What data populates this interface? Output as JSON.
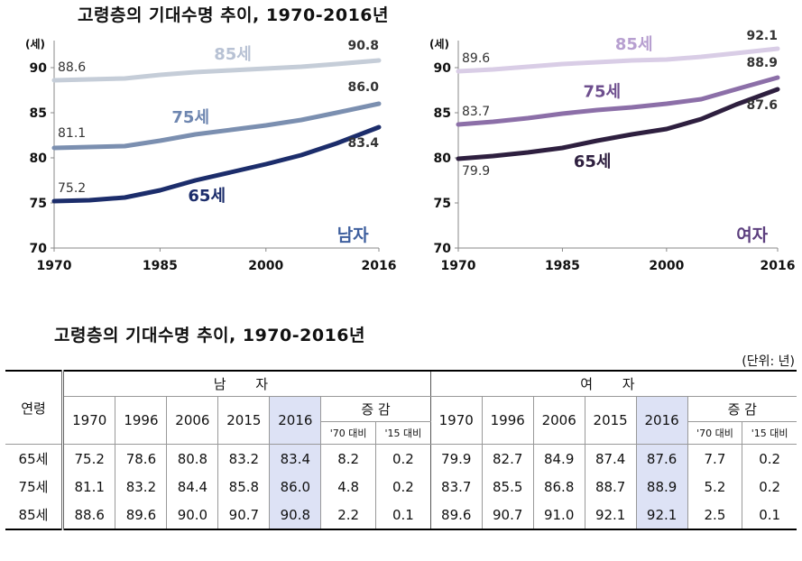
{
  "top_title": "고령층의 기대수명 추이, 1970-2016년",
  "chart_data": [
    {
      "type": "line",
      "panel_label": "남자",
      "yunit": "(세)",
      "ylim": [
        70,
        92
      ],
      "yticks": [
        70,
        75,
        80,
        85,
        90
      ],
      "xlim": [
        1970,
        2016
      ],
      "xticks": [
        1970,
        1985,
        2000,
        2016
      ],
      "series": [
        {
          "name": "85세",
          "color": "#c5cdd8",
          "x": [
            1970,
            1975,
            1980,
            1985,
            1990,
            1995,
            2000,
            2005,
            2010,
            2016
          ],
          "y": [
            88.6,
            88.7,
            88.8,
            89.2,
            89.5,
            89.7,
            89.9,
            90.1,
            90.4,
            90.8
          ],
          "start_label": "88.6",
          "end_label": "90.8"
        },
        {
          "name": "75세",
          "color": "#7b8fb0",
          "x": [
            1970,
            1975,
            1980,
            1985,
            1990,
            1995,
            2000,
            2005,
            2010,
            2016
          ],
          "y": [
            81.1,
            81.2,
            81.3,
            81.9,
            82.6,
            83.1,
            83.6,
            84.2,
            85.0,
            86.0
          ],
          "start_label": "81.1",
          "end_label": "86.0"
        },
        {
          "name": "65세",
          "color": "#1c2d6b",
          "x": [
            1970,
            1975,
            1980,
            1985,
            1990,
            1995,
            2000,
            2005,
            2010,
            2016
          ],
          "y": [
            75.2,
            75.3,
            75.6,
            76.4,
            77.5,
            78.4,
            79.3,
            80.3,
            81.6,
            83.4
          ],
          "start_label": "75.2",
          "end_label": "83.4"
        }
      ]
    },
    {
      "type": "line",
      "panel_label": "여자",
      "yunit": "(세)",
      "ylim": [
        70,
        92
      ],
      "yticks": [
        70,
        75,
        80,
        85,
        90
      ],
      "xlim": [
        1970,
        2016
      ],
      "xticks": [
        1970,
        1985,
        2000,
        2016
      ],
      "series": [
        {
          "name": "85세",
          "color": "#d9cde6",
          "x": [
            1970,
            1975,
            1980,
            1985,
            1990,
            1995,
            2000,
            2005,
            2010,
            2016
          ],
          "y": [
            89.6,
            89.8,
            90.1,
            90.4,
            90.6,
            90.8,
            90.9,
            91.2,
            91.6,
            92.1
          ],
          "start_label": "89.6",
          "end_label": "92.1"
        },
        {
          "name": "75세",
          "color": "#8c6fa8",
          "x": [
            1970,
            1975,
            1980,
            1985,
            1990,
            1995,
            2000,
            2005,
            2010,
            2016
          ],
          "y": [
            83.7,
            84.0,
            84.4,
            84.9,
            85.3,
            85.6,
            86.0,
            86.5,
            87.6,
            88.9
          ],
          "start_label": "83.7",
          "end_label": "88.9"
        },
        {
          "name": "65세",
          "color": "#2e1f3f",
          "x": [
            1970,
            1975,
            1980,
            1985,
            1990,
            1995,
            2000,
            2005,
            2010,
            2016
          ],
          "y": [
            79.9,
            80.2,
            80.6,
            81.1,
            81.9,
            82.6,
            83.2,
            84.3,
            85.9,
            87.6
          ],
          "start_label": "79.9",
          "end_label": "87.6"
        }
      ]
    }
  ],
  "table": {
    "title": "고령층의 기대수명 추이, 1970-2016년",
    "unit": "(단위: 년)",
    "row_header": "연령",
    "group_male": "남 자",
    "group_female": "여 자",
    "years": [
      "1970",
      "1996",
      "2006",
      "2015",
      "2016"
    ],
    "change_label": "증 감",
    "change_cols": [
      "'70 대비",
      "'15 대비"
    ],
    "rows": [
      {
        "age": "65세",
        "male": [
          "75.2",
          "78.6",
          "80.8",
          "83.2",
          "83.4"
        ],
        "male_change": [
          "8.2",
          "0.2"
        ],
        "female": [
          "79.9",
          "82.7",
          "84.9",
          "87.4",
          "87.6"
        ],
        "female_change": [
          "7.7",
          "0.2"
        ]
      },
      {
        "age": "75세",
        "male": [
          "81.1",
          "83.2",
          "84.4",
          "85.8",
          "86.0"
        ],
        "male_change": [
          "4.8",
          "0.2"
        ],
        "female": [
          "83.7",
          "85.5",
          "86.8",
          "88.7",
          "88.9"
        ],
        "female_change": [
          "5.2",
          "0.2"
        ]
      },
      {
        "age": "85세",
        "male": [
          "88.6",
          "89.6",
          "90.0",
          "90.7",
          "90.8"
        ],
        "male_change": [
          "2.2",
          "0.1"
        ],
        "female": [
          "89.6",
          "90.7",
          "91.0",
          "92.1",
          "92.1"
        ],
        "female_change": [
          "2.5",
          "0.1"
        ]
      }
    ]
  }
}
